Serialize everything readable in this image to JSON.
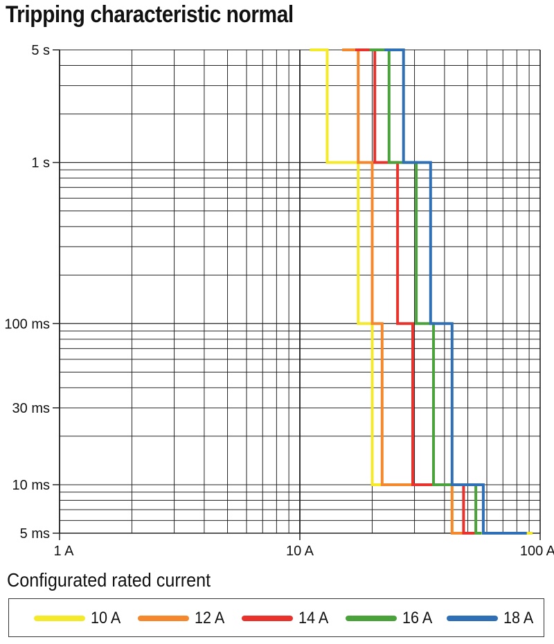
{
  "title": "Tripping characteristic normal",
  "legend_title": "Configurated rated current",
  "chart_data": {
    "type": "line",
    "title": "Tripping characteristic normal",
    "x_scale": "log",
    "y_scale": "log",
    "xlim": [
      1,
      100
    ],
    "ylim": [
      0.005,
      5
    ],
    "x_unit": "A",
    "y_unit": "s",
    "grid": true,
    "x_ticks": [
      {
        "value": 1,
        "label": "1 A"
      },
      {
        "value": 10,
        "label": "10 A"
      },
      {
        "value": 100,
        "label": "100 A"
      }
    ],
    "y_ticks": [
      {
        "value": 5,
        "label": "5 s"
      },
      {
        "value": 1,
        "label": "1 s"
      },
      {
        "value": 0.1,
        "label": "100 ms"
      },
      {
        "value": 0.03,
        "label": "30 ms"
      },
      {
        "value": 0.01,
        "label": "10 ms"
      },
      {
        "value": 0.005,
        "label": "5 ms"
      }
    ],
    "legend_placement": "bottom",
    "series": [
      {
        "name": "10 A",
        "color": "#f5ea2a",
        "points": [
          [
            11,
            5
          ],
          [
            13,
            5
          ],
          [
            13,
            1
          ],
          [
            17.5,
            1
          ],
          [
            17.5,
            0.1
          ],
          [
            20,
            0.1
          ],
          [
            20,
            0.01
          ],
          [
            43,
            0.01
          ],
          [
            43,
            0.005
          ],
          [
            93,
            0.005
          ]
        ]
      },
      {
        "name": "12 A",
        "color": "#f5882c",
        "points": [
          [
            15,
            5
          ],
          [
            17.5,
            5
          ],
          [
            17.5,
            1
          ],
          [
            20,
            1
          ],
          [
            20,
            0.1
          ],
          [
            22,
            0.1
          ],
          [
            22,
            0.01
          ],
          [
            43,
            0.01
          ],
          [
            43,
            0.005
          ],
          [
            48,
            0.005
          ]
        ]
      },
      {
        "name": "14 A",
        "color": "#e8322b",
        "points": [
          [
            17,
            5
          ],
          [
            20.5,
            5
          ],
          [
            20.5,
            1
          ],
          [
            25.5,
            1
          ],
          [
            25.5,
            0.1
          ],
          [
            29.5,
            0.1
          ],
          [
            29.5,
            0.01
          ],
          [
            48,
            0.01
          ],
          [
            48,
            0.005
          ],
          [
            54,
            0.005
          ]
        ]
      },
      {
        "name": "16 A",
        "color": "#4aa23a",
        "points": [
          [
            19.5,
            5
          ],
          [
            23.5,
            5
          ],
          [
            23.5,
            1
          ],
          [
            30.5,
            1
          ],
          [
            30.5,
            0.1
          ],
          [
            36,
            0.1
          ],
          [
            36,
            0.01
          ],
          [
            54,
            0.01
          ],
          [
            54,
            0.005
          ],
          [
            57,
            0.005
          ]
        ]
      },
      {
        "name": "18 A",
        "color": "#2e6fb5",
        "points": [
          [
            22.5,
            5
          ],
          [
            27,
            5
          ],
          [
            27,
            1
          ],
          [
            35,
            1
          ],
          [
            35,
            0.1
          ],
          [
            43,
            0.1
          ],
          [
            43,
            0.01
          ],
          [
            58,
            0.01
          ],
          [
            58,
            0.005
          ],
          [
            88,
            0.005
          ]
        ]
      }
    ]
  }
}
